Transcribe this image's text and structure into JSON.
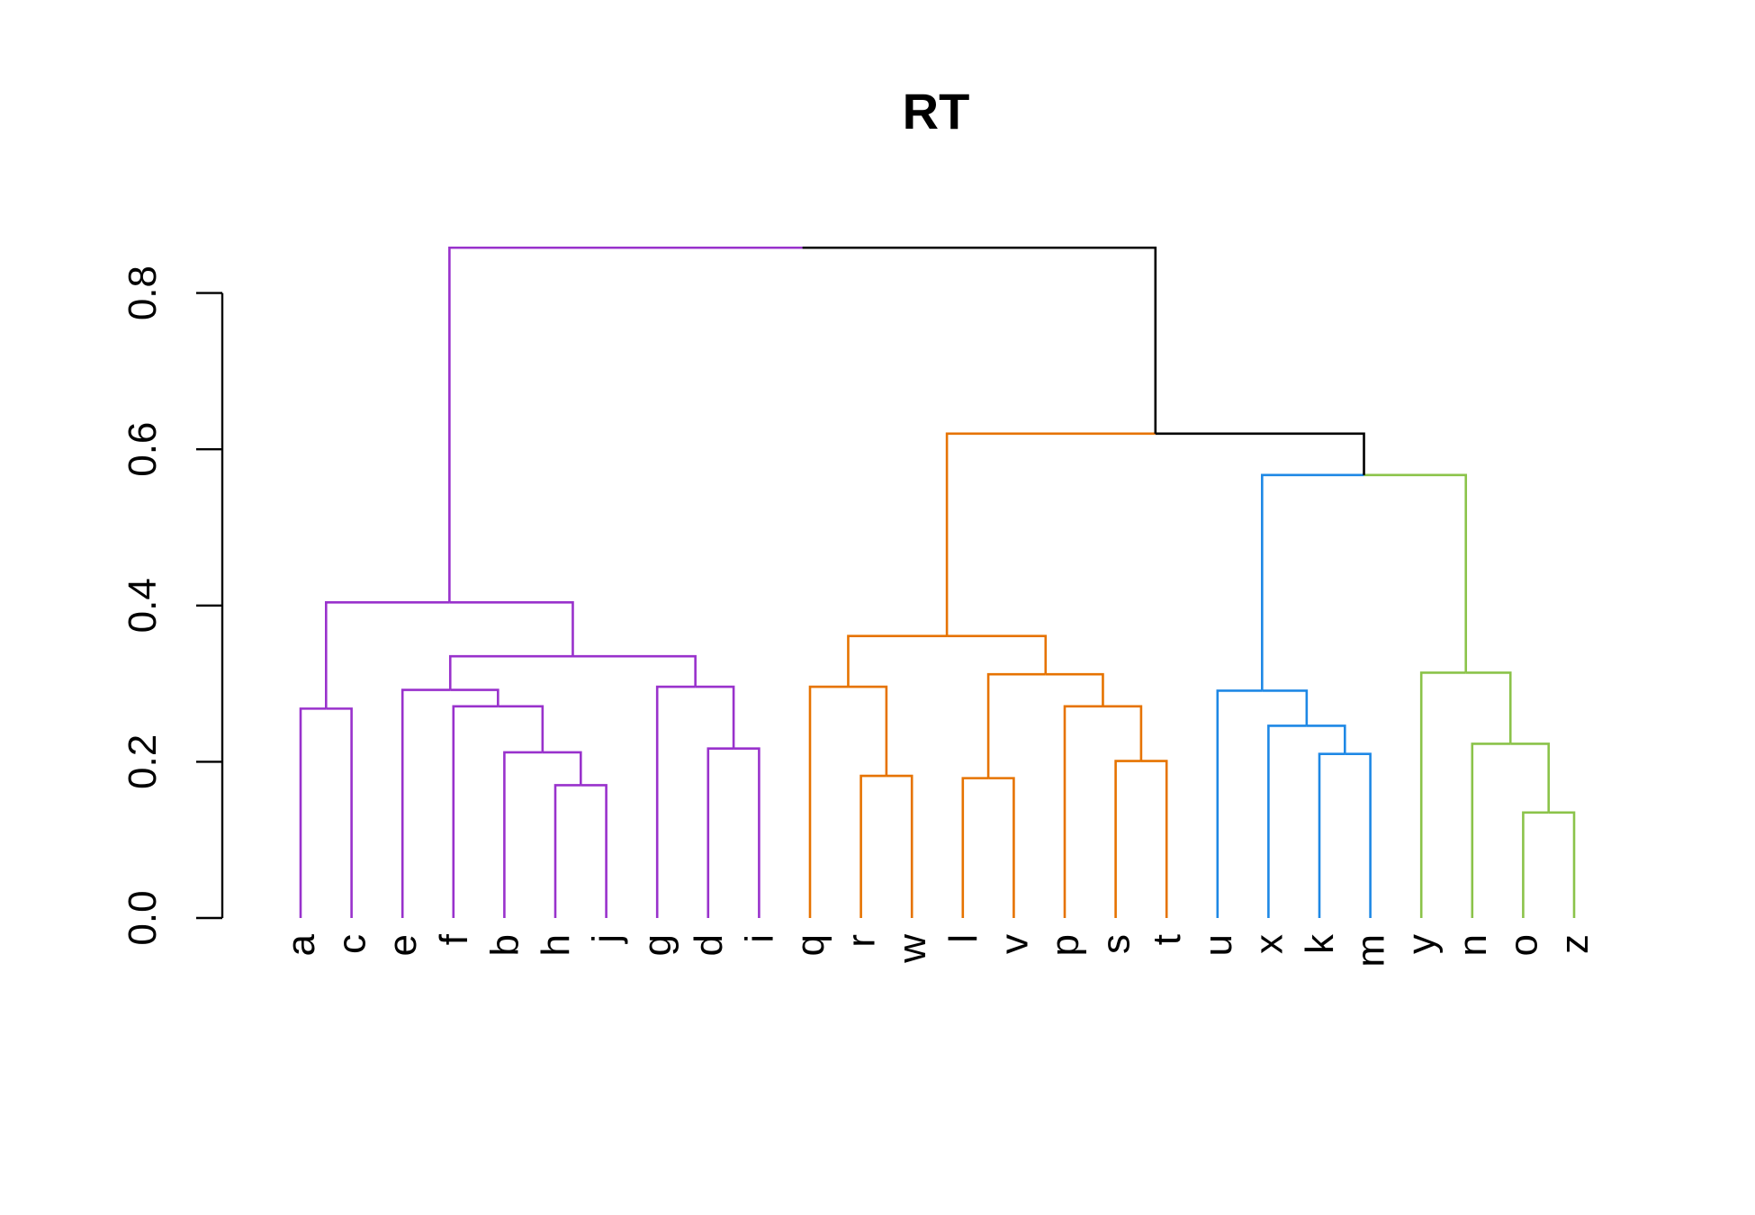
{
  "chart_data": {
    "type": "dendrogram",
    "title": "RT",
    "ylim": [
      0,
      0.85
    ],
    "yticks": [
      0.0,
      0.2,
      0.4,
      0.6,
      0.8
    ],
    "ytick_labels": [
      "0.0",
      "0.2",
      "0.4",
      "0.6",
      "0.8"
    ],
    "leaves": [
      "a",
      "c",
      "e",
      "f",
      "b",
      "h",
      "j",
      "g",
      "d",
      "i",
      "q",
      "r",
      "w",
      "l",
      "v",
      "p",
      "s",
      "t",
      "u",
      "x",
      "k",
      "m",
      "y",
      "n",
      "o",
      "z"
    ],
    "colors": {
      "purple": "#9932CC",
      "orange": "#E67300",
      "blue": "#1E88E5",
      "green": "#8BC34A",
      "root": "#000000"
    },
    "merges": [
      {
        "id": "ac",
        "left": "a",
        "right": "c",
        "height": 0.268,
        "color": "purple"
      },
      {
        "id": "hj",
        "left": "h",
        "right": "j",
        "height": 0.17,
        "color": "purple"
      },
      {
        "id": "bhj",
        "left": "b",
        "right": "hj",
        "height": 0.212,
        "color": "purple"
      },
      {
        "id": "fbhj",
        "left": "f",
        "right": "bhj",
        "height": 0.271,
        "color": "purple"
      },
      {
        "id": "efbhj",
        "left": "e",
        "right": "fbhj",
        "height": 0.292,
        "color": "purple"
      },
      {
        "id": "di",
        "left": "d",
        "right": "i",
        "height": 0.217,
        "color": "purple"
      },
      {
        "id": "gdi",
        "left": "g",
        "right": "di",
        "height": 0.296,
        "color": "purple"
      },
      {
        "id": "efbhjgdi",
        "left": "efbhj",
        "right": "gdi",
        "height": 0.335,
        "color": "purple"
      },
      {
        "id": "purple_root",
        "left": "ac",
        "right": "efbhjgdi",
        "height": 0.404,
        "color": "purple"
      },
      {
        "id": "rw",
        "left": "r",
        "right": "w",
        "height": 0.182,
        "color": "orange"
      },
      {
        "id": "qrw",
        "left": "q",
        "right": "rw",
        "height": 0.296,
        "color": "orange"
      },
      {
        "id": "lv",
        "left": "l",
        "right": "v",
        "height": 0.179,
        "color": "orange"
      },
      {
        "id": "st",
        "left": "s",
        "right": "t",
        "height": 0.201,
        "color": "orange"
      },
      {
        "id": "pst",
        "left": "p",
        "right": "st",
        "height": 0.271,
        "color": "orange"
      },
      {
        "id": "lvpst",
        "left": "lv",
        "right": "pst",
        "height": 0.312,
        "color": "orange"
      },
      {
        "id": "orange_sub",
        "left": "qrw",
        "right": "lvpst",
        "height": 0.361,
        "color": "orange"
      },
      {
        "id": "km",
        "left": "k",
        "right": "m",
        "height": 0.21,
        "color": "blue"
      },
      {
        "id": "xkm",
        "left": "x",
        "right": "km",
        "height": 0.246,
        "color": "blue"
      },
      {
        "id": "uxkm",
        "left": "u",
        "right": "xkm",
        "height": 0.291,
        "color": "blue"
      },
      {
        "id": "oz",
        "left": "o",
        "right": "z",
        "height": 0.135,
        "color": "green"
      },
      {
        "id": "noz",
        "left": "n",
        "right": "oz",
        "height": 0.223,
        "color": "green"
      },
      {
        "id": "ynoz",
        "left": "y",
        "right": "noz",
        "height": 0.314,
        "color": "green"
      },
      {
        "id": "bluegreen",
        "left": "uxkm",
        "right": "ynoz",
        "height": 0.567,
        "color": "split",
        "left_color": "blue",
        "right_color": "green"
      },
      {
        "id": "right_root",
        "left": "orange_sub",
        "right": "bluegreen",
        "height": 0.62,
        "color": "split",
        "left_color": "orange",
        "right_color": "root"
      },
      {
        "id": "root",
        "left": "purple_root",
        "right": "right_root",
        "height": 0.858,
        "color": "split",
        "left_color": "purple",
        "right_color": "root"
      }
    ]
  }
}
